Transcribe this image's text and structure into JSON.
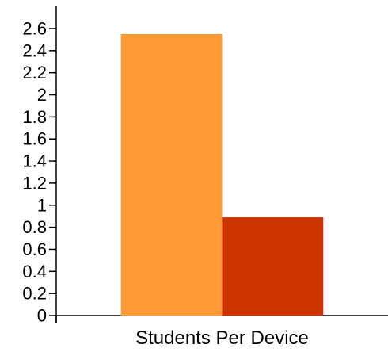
{
  "chart_data": {
    "type": "bar",
    "categories": [
      "Students Per Device"
    ],
    "series": [
      {
        "values": [
          2.55
        ],
        "color": "#fd9a35"
      },
      {
        "values": [
          0.89
        ],
        "color": "#cc3300"
      }
    ],
    "title": "",
    "xlabel": "",
    "ylabel": "",
    "ylim": [
      0,
      2.6
    ],
    "yticks": [
      "0",
      "0.2",
      "0.4",
      "0.6",
      "0.8",
      "1",
      "1.2",
      "1.4",
      "1.6",
      "1.8",
      "2",
      "2.2",
      "2.4",
      "2.6"
    ],
    "grid": false,
    "legend": "none"
  }
}
